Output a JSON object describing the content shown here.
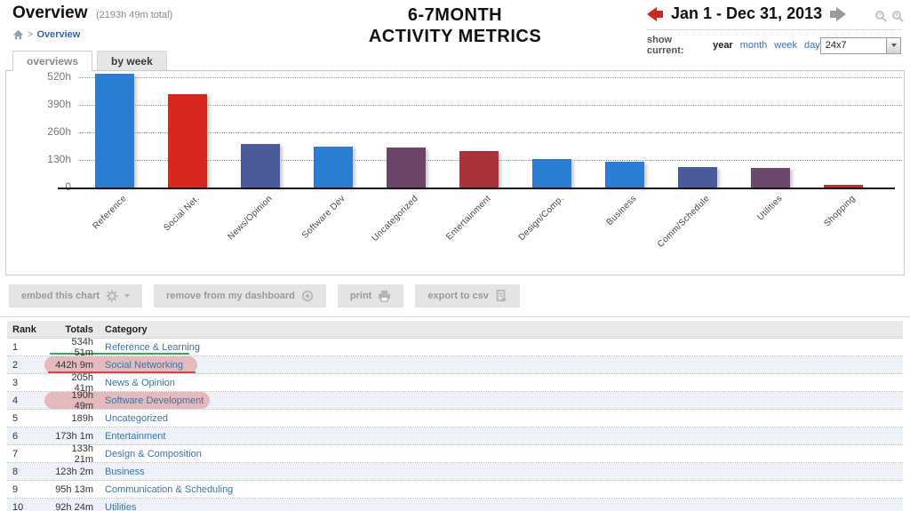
{
  "header": {
    "title": "Overview",
    "total": "(2193h 49m total)",
    "breadcrumb_sep": ">",
    "breadcrumb_current": "Overview",
    "center_title_line1": "6-7MONTH",
    "center_title_line2": "ACTIVITY METRICS",
    "date_range": "Jan 1 - Dec 31, 2013",
    "show_current_label": "show current:",
    "periods": [
      {
        "label": "year",
        "active": true
      },
      {
        "label": "month",
        "active": false
      },
      {
        "label": "week",
        "active": false
      },
      {
        "label": "day",
        "active": false
      }
    ],
    "filter_value": "24x7"
  },
  "tabs": [
    {
      "label": "overviews",
      "active": true
    },
    {
      "label": "by week",
      "active": false
    }
  ],
  "chart_data": {
    "type": "bar",
    "title": "6-7MONTH ACTIVITY METRICS",
    "categories": [
      "Reference",
      "Social Net.",
      "News/Opinion",
      "Software Dev",
      "Uncategorized",
      "Entertainment",
      "Design/Comp.",
      "Business",
      "Comm/Schedule",
      "Utilities",
      "Shopping"
    ],
    "values": [
      534.85,
      442.15,
      205.68,
      190.82,
      189,
      173.02,
      133.35,
      123.03,
      95.22,
      92.4,
      13
    ],
    "unit": "hours",
    "bar_colors": [
      "#2b7cd3",
      "#d8251d",
      "#4a5a9b",
      "#2b7cd3",
      "#6b4468",
      "#a93338",
      "#2b7cd3",
      "#2b7cd3",
      "#4a5a9b",
      "#6d486d",
      "#c03028"
    ],
    "yticks": [
      "0",
      "130h",
      "260h",
      "390h",
      "520h"
    ],
    "ytick_hours": [
      0,
      130,
      260,
      390,
      520
    ],
    "ylim": [
      0,
      560
    ],
    "grid": "dotted-horizontal",
    "legend": "none"
  },
  "toolbar": {
    "buttons": [
      {
        "label": "embed this chart",
        "icon": "gear-icon",
        "caret": true
      },
      {
        "label": "remove from my dashboard",
        "icon": "circle-plus-icon",
        "caret": false
      },
      {
        "label": "print",
        "icon": "printer-icon",
        "caret": false
      },
      {
        "label": "export to csv",
        "icon": "export-icon",
        "caret": false
      }
    ]
  },
  "table": {
    "columns": [
      "Rank",
      "Totals",
      "Category"
    ],
    "rows": [
      {
        "rank": "1",
        "total": "534h 51m",
        "category": "Reference & Learning",
        "annotation": "green-underline"
      },
      {
        "rank": "2",
        "total": "442h 9m",
        "category": "Social Networking",
        "annotation": "pink-oval-red-underline"
      },
      {
        "rank": "3",
        "total": "205h 41m",
        "category": "News & Opinion",
        "annotation": ""
      },
      {
        "rank": "4",
        "total": "190h 49m",
        "category": "Software Development",
        "annotation": "pink-oval"
      },
      {
        "rank": "5",
        "total": "189h",
        "category": "Uncategorized",
        "annotation": ""
      },
      {
        "rank": "6",
        "total": "173h 1m",
        "category": "Entertainment",
        "annotation": ""
      },
      {
        "rank": "7",
        "total": "133h 21m",
        "category": "Design & Composition",
        "annotation": ""
      },
      {
        "rank": "8",
        "total": "123h 2m",
        "category": "Business",
        "annotation": ""
      },
      {
        "rank": "9",
        "total": "95h 13m",
        "category": "Communication & Scheduling",
        "annotation": ""
      },
      {
        "rank": "10",
        "total": "92h 24m",
        "category": "Utilities",
        "annotation": ""
      }
    ]
  },
  "colors": {
    "accent_blue": "#2b7cd3",
    "accent_red": "#d8251d",
    "navy": "#4a5a9b",
    "purple": "#6b4468",
    "crimson": "#a93338",
    "link_blue": "#3b74a8",
    "annotation_pink": "rgba(219,118,118,0.45)",
    "annotation_green": "#3fa45b",
    "annotation_red": "#cc4743"
  }
}
